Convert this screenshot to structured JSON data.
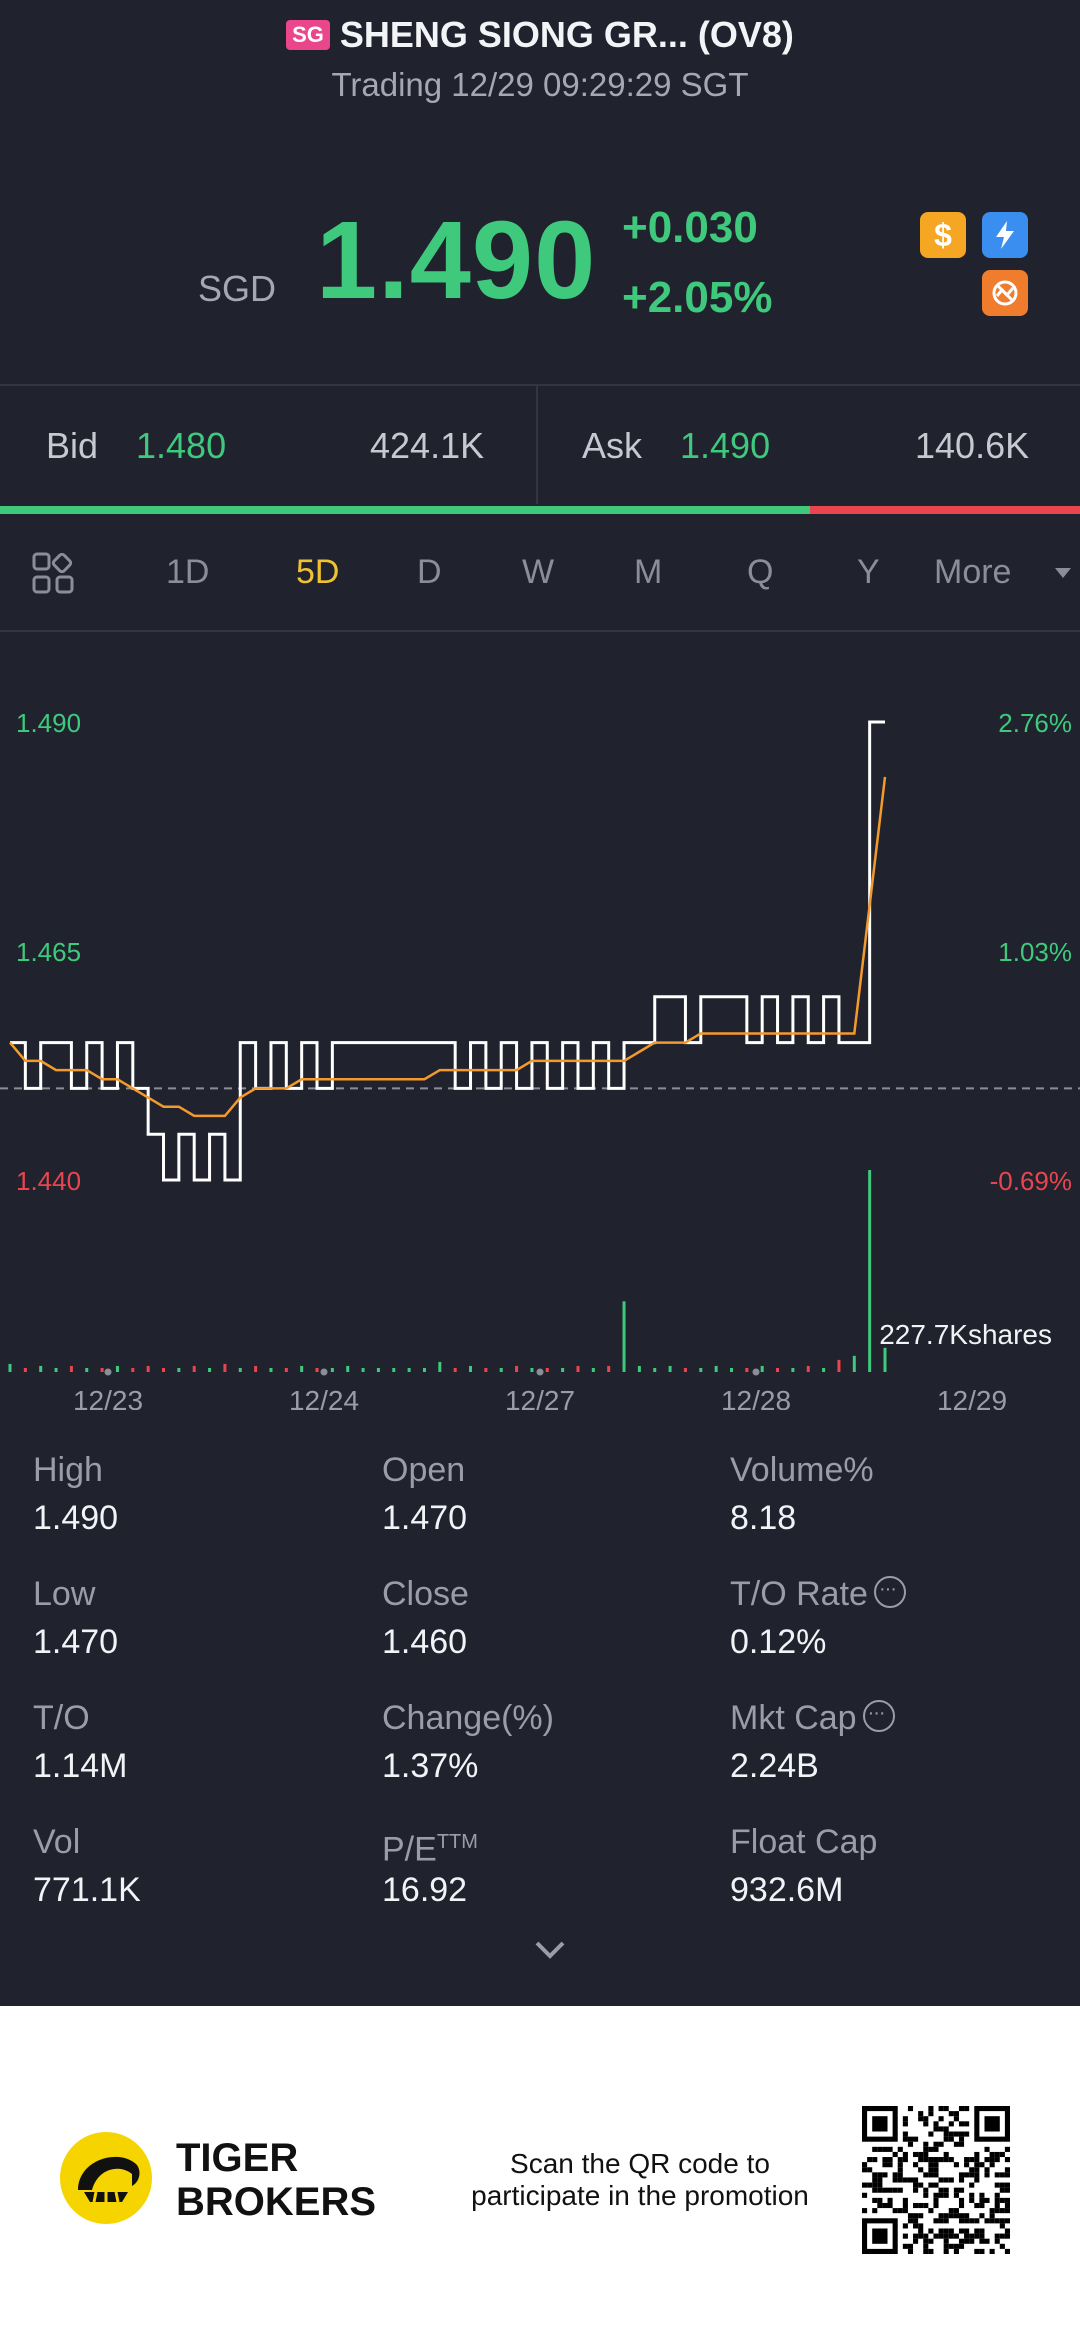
{
  "header": {
    "market_badge": "SG",
    "title": "SHENG SIONG GR... (OV8)",
    "status": "Trading 12/29 09:29:29 SGT"
  },
  "quote": {
    "currency": "SGD",
    "price": "1.490",
    "change": "+0.030",
    "change_pct": "+2.05%",
    "icons": [
      "dollar-icon",
      "lightning-icon",
      "no-short-icon"
    ],
    "colors": {
      "up": "#3ec97d",
      "down": "#e9454f",
      "accent": "#f0c233"
    }
  },
  "bidask": {
    "bid_label": "Bid",
    "bid_price": "1.480",
    "bid_size": "424.1K",
    "ask_label": "Ask",
    "ask_price": "1.490",
    "ask_size": "140.6K",
    "bid_ratio": 0.75
  },
  "tabs": {
    "items": [
      "1D",
      "5D",
      "D",
      "W",
      "M",
      "Q",
      "Y",
      "More"
    ],
    "active": "5D"
  },
  "chart_data": {
    "type": "line",
    "x_ticks": [
      "12/23",
      "12/24",
      "12/27",
      "12/28",
      "12/29"
    ],
    "y_left_ticks": [
      "1.490",
      "1.465",
      "1.440"
    ],
    "y_right_ticks": [
      "2.76%",
      "1.03%",
      "-0.69%"
    ],
    "ylim": [
      1.44,
      1.49
    ],
    "prev_close": 1.45,
    "volume_label": "227.7Kshares",
    "series": [
      {
        "role": "price",
        "color": "#ffffff",
        "values": [
          1.455,
          1.45,
          1.455,
          1.455,
          1.45,
          1.455,
          1.45,
          1.455,
          1.45,
          1.445,
          1.44,
          1.445,
          1.44,
          1.445,
          1.44,
          1.455,
          1.45,
          1.455,
          1.45,
          1.455,
          1.45,
          1.455,
          1.455,
          1.455,
          1.455,
          1.455,
          1.455,
          1.455,
          1.455,
          1.45,
          1.455,
          1.45,
          1.455,
          1.45,
          1.455,
          1.45,
          1.455,
          1.45,
          1.455,
          1.45,
          1.455,
          1.455,
          1.46,
          1.46,
          1.455,
          1.46,
          1.46,
          1.46,
          1.455,
          1.46,
          1.455,
          1.46,
          1.455,
          1.46,
          1.455,
          1.455,
          1.49,
          1.49
        ]
      },
      {
        "role": "average",
        "color": "#f39a2d",
        "values": [
          1.455,
          1.453,
          1.453,
          1.452,
          1.452,
          1.452,
          1.451,
          1.451,
          1.45,
          1.449,
          1.448,
          1.448,
          1.447,
          1.447,
          1.447,
          1.449,
          1.45,
          1.45,
          1.45,
          1.451,
          1.451,
          1.451,
          1.451,
          1.451,
          1.451,
          1.451,
          1.451,
          1.451,
          1.452,
          1.452,
          1.452,
          1.452,
          1.452,
          1.452,
          1.453,
          1.453,
          1.453,
          1.453,
          1.453,
          1.453,
          1.453,
          1.454,
          1.455,
          1.455,
          1.455,
          1.456,
          1.456,
          1.456,
          1.456,
          1.456,
          1.456,
          1.456,
          1.456,
          1.456,
          1.456,
          1.456,
          1.47,
          1.484
        ]
      }
    ],
    "volume": [
      0.04,
      0.02,
      0.03,
      0.02,
      0.03,
      0.02,
      0.02,
      0.03,
      0.02,
      0.03,
      0.02,
      0.02,
      0.03,
      0.02,
      0.04,
      0.02,
      0.03,
      0.02,
      0.02,
      0.03,
      0.02,
      0.02,
      0.03,
      0.02,
      0.02,
      0.02,
      0.02,
      0.02,
      0.05,
      0.02,
      0.03,
      0.02,
      0.02,
      0.03,
      0.02,
      0.02,
      0.02,
      0.03,
      0.02,
      0.03,
      0.35,
      0.03,
      0.02,
      0.03,
      0.02,
      0.02,
      0.03,
      0.02,
      0.02,
      0.03,
      0.02,
      0.02,
      0.03,
      0.02,
      0.06,
      0.08,
      1.0,
      0.12
    ]
  },
  "stats": [
    {
      "label": "High",
      "value": "1.490"
    },
    {
      "label": "Open",
      "value": "1.470"
    },
    {
      "label": "Volume%",
      "value": "8.18"
    },
    {
      "label": "Low",
      "value": "1.470"
    },
    {
      "label": "Close",
      "value": "1.460"
    },
    {
      "label": "T/O Rate",
      "value": "0.12%"
    },
    {
      "label": "T/O",
      "value": "1.14M"
    },
    {
      "label": "Change(%)",
      "value": "1.37%"
    },
    {
      "label": "Mkt Cap",
      "value": "2.24B"
    },
    {
      "label": "Vol",
      "value": "771.1K"
    },
    {
      "label": "P/E",
      "value": "16.92"
    },
    {
      "label": "Float Cap",
      "value": "932.6M"
    }
  ],
  "pe_sup": "TTM",
  "footer": {
    "brand_line1": "TIGER",
    "brand_line2": "BROKERS",
    "promo_line1": "Scan the QR code to",
    "promo_line2": "participate in the promotion"
  }
}
